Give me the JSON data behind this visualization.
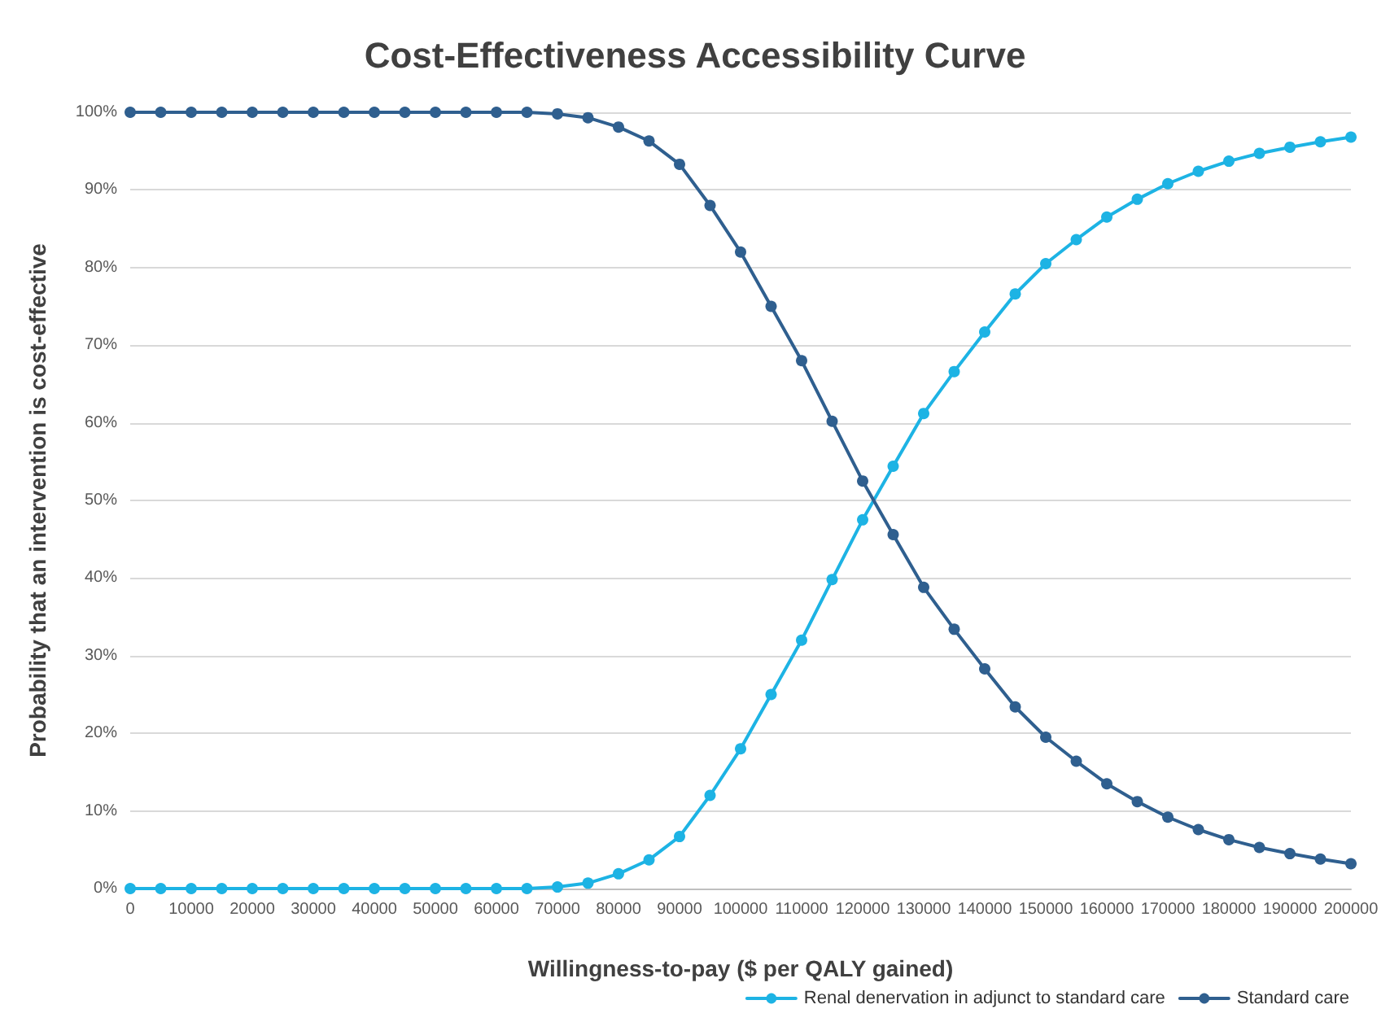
{
  "chart_data": {
    "type": "line",
    "title": "Cost-Effectiveness Accessibility Curve",
    "xlabel": "Willingness-to-pay ($ per QALY gained)",
    "ylabel": "Probability that an intervention is cost-effective",
    "x": [
      0,
      5000,
      10000,
      15000,
      20000,
      25000,
      30000,
      35000,
      40000,
      45000,
      50000,
      55000,
      60000,
      65000,
      70000,
      75000,
      80000,
      85000,
      90000,
      95000,
      100000,
      105000,
      110000,
      115000,
      120000,
      125000,
      130000,
      135000,
      140000,
      145000,
      150000,
      155000,
      160000,
      165000,
      170000,
      175000,
      180000,
      185000,
      190000,
      195000,
      200000
    ],
    "series": [
      {
        "name": "Renal denervation in adjunct to standard care",
        "color": "#1db3e4",
        "values": [
          0,
          0,
          0,
          0,
          0,
          0,
          0,
          0,
          0,
          0,
          0,
          0,
          0,
          0,
          0.2,
          0.7,
          1.9,
          3.7,
          6.7,
          12,
          18,
          25,
          32,
          39.8,
          47.5,
          54.4,
          61.2,
          66.6,
          71.7,
          76.6,
          80.5,
          83.6,
          86.5,
          88.8,
          90.8,
          92.4,
          93.7,
          94.7,
          95.5,
          96.2,
          96.8
        ]
      },
      {
        "name": "Standard care",
        "color": "#2f5f8f",
        "values": [
          100,
          100,
          100,
          100,
          100,
          100,
          100,
          100,
          100,
          100,
          100,
          100,
          100,
          100,
          99.8,
          99.3,
          98.1,
          96.3,
          93.3,
          88,
          82,
          75,
          68,
          60.2,
          52.5,
          45.6,
          38.8,
          33.4,
          28.3,
          23.4,
          19.5,
          16.4,
          13.5,
          11.2,
          9.2,
          7.6,
          6.3,
          5.3,
          4.5,
          3.8,
          3.2
        ]
      }
    ],
    "xlim": [
      0,
      200000
    ],
    "xticks": [
      0,
      10000,
      20000,
      30000,
      40000,
      50000,
      60000,
      70000,
      80000,
      90000,
      100000,
      110000,
      120000,
      130000,
      140000,
      150000,
      160000,
      170000,
      180000,
      190000,
      200000
    ],
    "ylim": [
      0,
      100
    ],
    "yticks": [
      {
        "value": 0,
        "label": "0%"
      },
      {
        "value": 10,
        "label": "10%"
      },
      {
        "value": 20,
        "label": "20%"
      },
      {
        "value": 30,
        "label": "30%"
      },
      {
        "value": 40,
        "label": "40%"
      },
      {
        "value": 50,
        "label": "50%"
      },
      {
        "value": 60,
        "label": "60%"
      },
      {
        "value": 70,
        "label": "70%"
      },
      {
        "value": 80,
        "label": "80%"
      },
      {
        "value": 90,
        "label": "90%"
      },
      {
        "value": 100,
        "label": "100%"
      }
    ],
    "grid": "y",
    "legend": "bottom right",
    "marker": "circle",
    "line_style": "solid"
  }
}
